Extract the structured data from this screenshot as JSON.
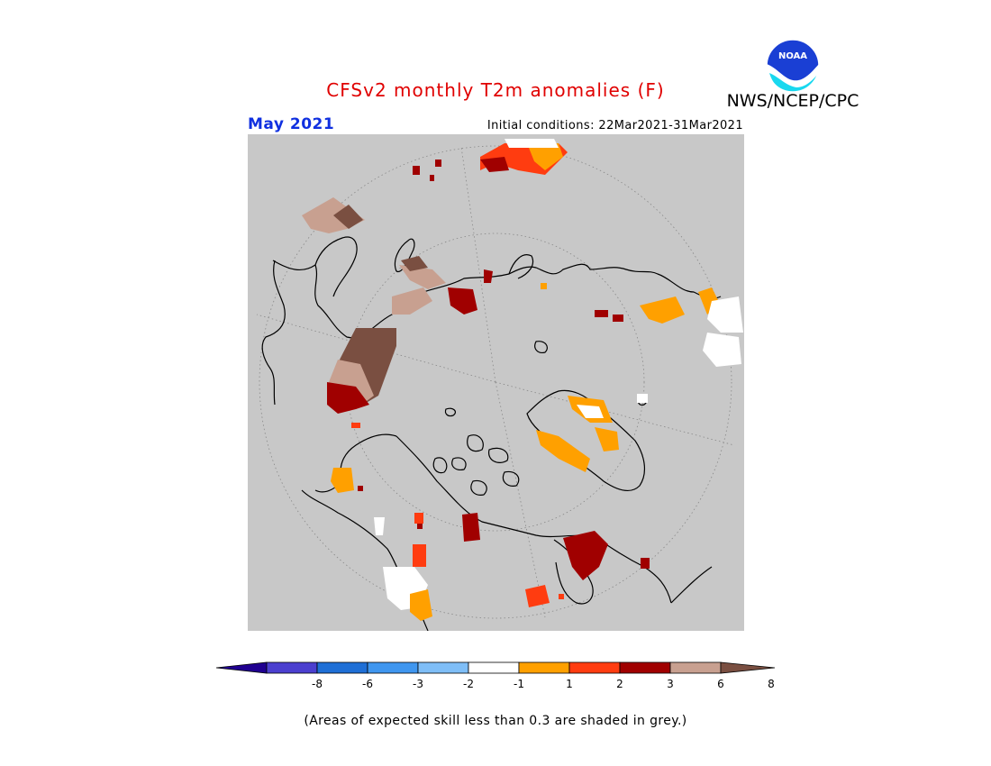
{
  "header": {
    "title": "CFSv2 monthly T2m anomalies (F)",
    "org": "NWS/NCEP/CPC",
    "logo_text": "NOAA",
    "month": "May 2021",
    "initial_conditions": "Initial conditions: 22Mar2021-31Mar2021"
  },
  "legend": {
    "tick_labels": [
      "-8",
      "-6",
      "-3",
      "-2",
      "-1",
      "1",
      "2",
      "3",
      "6",
      "8"
    ],
    "bin_colors": [
      "#200090",
      "#4b3fcf",
      "#1f6fd6",
      "#3f96ef",
      "#7fbef7",
      "#ffffff",
      "#ffa000",
      "#ff3c10",
      "#a00000",
      "#c8a090",
      "#7a4f41"
    ],
    "min_arrow_color": "#200090",
    "max_arrow_color": "#7a4f41"
  },
  "map": {
    "projection": "north polar stereographic",
    "grey_meaning": "skill below 0.3",
    "background_color": "#c8c8c8"
  },
  "footnote": "(Areas of expected skill less than 0.3 are shaded in grey.)"
}
